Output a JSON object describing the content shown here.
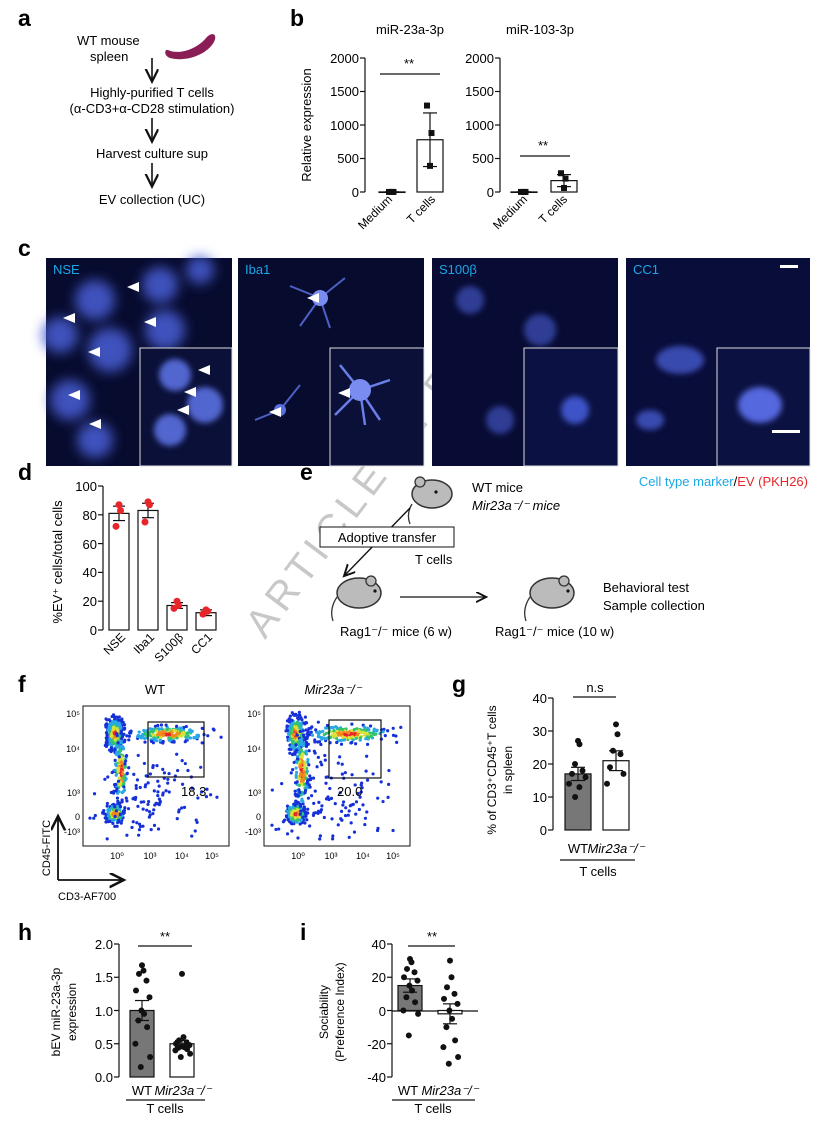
{
  "panel_labels": {
    "a": "a",
    "b": "b",
    "c": "c",
    "d": "d",
    "e": "e",
    "f": "f",
    "g": "g",
    "h": "h",
    "i": "i"
  },
  "watermark": "ARTICLE IN PRESS",
  "panel_a": {
    "steps": [
      "WT mouse",
      "spleen",
      "Highly-purified T cells",
      "(α-CD3+α-CD28 stimulation)",
      "Harvest culture sup",
      "EV collection (UC)"
    ],
    "colors": {
      "spleen": "#8b1d56"
    }
  },
  "panel_b": {
    "y_title": "Relative expression",
    "ticks": [
      "2000",
      "1500",
      "1000",
      "500",
      "0"
    ],
    "sig": "**",
    "charts": [
      {
        "title": "miR-23a-3p",
        "categories": [
          "Medium",
          "T cells"
        ]
      },
      {
        "title": "miR-103-3p",
        "categories": [
          "Medium",
          "T cells"
        ]
      }
    ]
  },
  "panel_c": {
    "markers": [
      "NSE",
      "Iba1",
      "S100β",
      "CC1"
    ],
    "legend_marker": "Cell type marker",
    "legend_sep": "/",
    "legend_ev": "EV (PKH26)",
    "colors": {
      "marker": "#1aa7e6",
      "ev": "#e8262a"
    }
  },
  "panel_d": {
    "y_title": "%EV⁺ cells/total cells",
    "ticks": [
      "100",
      "80",
      "60",
      "40",
      "20",
      "0"
    ],
    "categories": [
      "NSE",
      "Iba1",
      "S100β",
      "CC1"
    ]
  },
  "panel_e": {
    "donor_lines": [
      "WT mice",
      "Mir23a⁻/⁻ mice"
    ],
    "transfer": "Adoptive transfer",
    "tcells": "T cells",
    "recipient_6w": "Rag1⁻/⁻ mice (6 w)",
    "recipient_10w": "Rag1⁻/⁻ mice (10 w)",
    "outcomes": [
      "Behavioral test",
      "Sample collection"
    ]
  },
  "panel_f": {
    "plots": [
      {
        "title": "WT",
        "gate_value": "18.3"
      },
      {
        "title": "Mir23a⁻/⁻",
        "gate_value": "20.0"
      }
    ],
    "y_axis": "CD45-FITC",
    "x_axis": "CD3-AF700",
    "x_ticks": [
      "10⁰",
      "10³",
      "10⁴",
      "10⁵"
    ],
    "y_ticks": [
      "10⁵",
      "10⁴",
      "10³",
      "0",
      "-10³"
    ]
  },
  "panel_g": {
    "y_title_1": "% of CD3⁺CD45⁺T cells",
    "y_title_2": "in spleen",
    "ticks": [
      "40",
      "30",
      "20",
      "10",
      "0"
    ],
    "sig": "n.s",
    "categories": [
      "WT",
      "Mir23a⁻/⁻"
    ],
    "group": "T cells"
  },
  "panel_h": {
    "y_title_1": "bEV miR-23a-3p",
    "y_title_2": "expression",
    "ticks": [
      "2.0",
      "1.5",
      "1.0",
      "0.5",
      "0.0"
    ],
    "sig": "**",
    "categories": [
      "WT",
      "Mir23a⁻/⁻"
    ],
    "group": "T cells"
  },
  "panel_i": {
    "y_title_1": "Sociability",
    "y_title_2": "(Preference Index)",
    "ticks": [
      "40",
      "20",
      "0",
      "-20",
      "-40"
    ],
    "sig": "**",
    "categories": [
      "WT",
      "Mir23a⁻/⁻"
    ],
    "group": "T cells"
  },
  "chart_data": [
    {
      "type": "bar",
      "title": "miR-23a-3p",
      "categories": [
        "Medium",
        "T cells"
      ],
      "values": [
        1,
        780
      ],
      "error": [
        0,
        400
      ],
      "points": [
        [
          1,
          1,
          1
        ],
        [
          390,
          880,
          1290
        ]
      ],
      "ylabel": "Relative expression",
      "ylim": [
        0,
        2000
      ]
    },
    {
      "type": "bar",
      "title": "miR-103-3p",
      "categories": [
        "Medium",
        "T cells"
      ],
      "values": [
        1,
        170
      ],
      "error": [
        0,
        90
      ],
      "points": [
        [
          1,
          1,
          1
        ],
        [
          60,
          200,
          280
        ]
      ],
      "ylim": [
        0,
        2000
      ]
    },
    {
      "type": "bar",
      "categories": [
        "NSE",
        "Iba1",
        "S100β",
        "CC1"
      ],
      "values": [
        81,
        83,
        17,
        12
      ],
      "error": [
        5,
        5,
        2,
        2
      ],
      "points": [
        [
          87,
          83,
          72
        ],
        [
          89,
          87,
          75
        ],
        [
          20,
          17,
          15
        ],
        [
          14,
          13,
          11
        ]
      ],
      "ylabel": "%EV⁺ cells/total cells",
      "ylim": [
        0,
        100
      ]
    },
    {
      "type": "bar",
      "categories": [
        "WT",
        "Mir23a⁻/⁻"
      ],
      "values": [
        17,
        21
      ],
      "error": [
        2,
        3
      ],
      "points": [
        [
          27,
          26,
          20,
          18,
          17,
          16,
          14,
          13,
          10
        ],
        [
          32,
          29,
          24,
          23,
          19,
          17,
          14
        ]
      ],
      "ylabel": "% of CD3⁺CD45⁺T cells in spleen",
      "ylim": [
        0,
        40
      ]
    },
    {
      "type": "bar",
      "categories": [
        "WT",
        "Mir23a⁻/⁻"
      ],
      "values": [
        1.0,
        0.5
      ],
      "error": [
        0.15,
        0.05
      ],
      "points": [
        [
          1.68,
          1.6,
          1.55,
          1.45,
          1.3,
          1.2,
          1.0,
          0.95,
          0.85,
          0.75,
          0.5,
          0.3,
          0.15
        ],
        [
          1.55,
          0.6,
          0.55,
          0.52,
          0.5,
          0.48,
          0.46,
          0.45,
          0.44,
          0.42,
          0.4,
          0.35,
          0.3
        ]
      ],
      "ylabel": "bEV miR-23a-3p expression",
      "ylim": [
        0,
        2.0
      ]
    },
    {
      "type": "bar",
      "categories": [
        "WT",
        "Mir23a⁻/⁻"
      ],
      "values": [
        15,
        -2
      ],
      "error": [
        4,
        6
      ],
      "points": [
        [
          31,
          29,
          25,
          23,
          20,
          18,
          15,
          12,
          8,
          5,
          0,
          -2,
          -15
        ],
        [
          30,
          20,
          14,
          10,
          7,
          4,
          0,
          -5,
          -10,
          -18,
          -22,
          -28,
          -32
        ]
      ],
      "ylabel": "Sociability (Preference Index)",
      "ylim": [
        -40,
        40
      ]
    }
  ]
}
